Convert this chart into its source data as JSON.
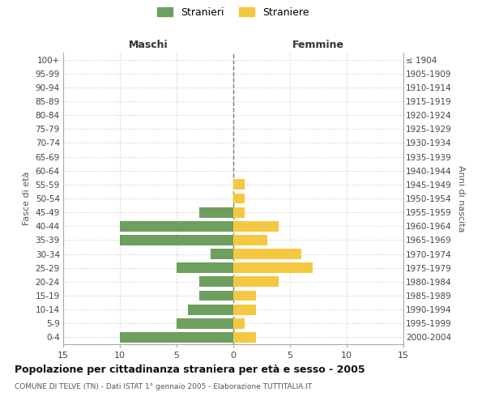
{
  "age_groups": [
    "0-4",
    "5-9",
    "10-14",
    "15-19",
    "20-24",
    "25-29",
    "30-34",
    "35-39",
    "40-44",
    "45-49",
    "50-54",
    "55-59",
    "60-64",
    "65-69",
    "70-74",
    "75-79",
    "80-84",
    "85-89",
    "90-94",
    "95-99",
    "100+"
  ],
  "birth_years": [
    "2000-2004",
    "1995-1999",
    "1990-1994",
    "1985-1989",
    "1980-1984",
    "1975-1979",
    "1970-1974",
    "1965-1969",
    "1960-1964",
    "1955-1959",
    "1950-1954",
    "1945-1949",
    "1940-1944",
    "1935-1939",
    "1930-1934",
    "1925-1929",
    "1920-1924",
    "1915-1919",
    "1910-1914",
    "1905-1909",
    "≤ 1904"
  ],
  "males": [
    10,
    5,
    4,
    3,
    3,
    5,
    2,
    10,
    10,
    3,
    0,
    0,
    0,
    0,
    0,
    0,
    0,
    0,
    0,
    0,
    0
  ],
  "females": [
    2,
    1,
    2,
    2,
    4,
    7,
    6,
    3,
    4,
    1,
    1,
    1,
    0,
    0,
    0,
    0,
    0,
    0,
    0,
    0,
    0
  ],
  "male_color": "#6d9f5e",
  "female_color": "#f5c842",
  "center_line_color": "#808060",
  "grid_color": "#cccccc",
  "background_color": "#ffffff",
  "title": "Popolazione per cittadinanza straniera per età e sesso - 2005",
  "subtitle": "COMUNE DI TELVE (TN) - Dati ISTAT 1° gennaio 2005 - Elaborazione TUTTITALIA.IT",
  "xlabel_left": "Maschi",
  "xlabel_right": "Femmine",
  "ylabel_left": "Fasce di età",
  "ylabel_right": "Anni di nascita",
  "legend_male": "Stranieri",
  "legend_female": "Straniere",
  "xlim": 15,
  "bar_height": 0.75
}
